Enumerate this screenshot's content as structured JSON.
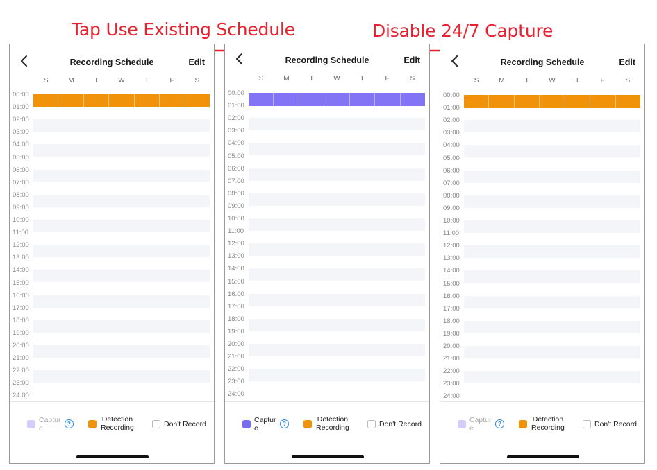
{
  "captions": {
    "step1": "Tap Use Existing Schedule",
    "step2": "Disable 24/7 Capture"
  },
  "panels": [
    {
      "title": "Recording Schedule",
      "edit_label": "Edit",
      "fill_color": "#f0930b",
      "fill_hours": [
        0,
        1
      ],
      "capture_active": false
    },
    {
      "title": "Recording Schedule",
      "edit_label": "Edit",
      "fill_color": "#8274f5",
      "fill_hours": [
        0,
        1
      ],
      "capture_active": true
    },
    {
      "title": "Recording Schedule",
      "edit_label": "Edit",
      "fill_color": "#f0930b",
      "fill_hours": [
        0,
        1
      ],
      "capture_active": false
    }
  ],
  "days": [
    "S",
    "M",
    "T",
    "W",
    "T",
    "F",
    "S"
  ],
  "hours": [
    "00:00",
    "01:00",
    "02:00",
    "03:00",
    "04:00",
    "05:00",
    "06:00",
    "07:00",
    "08:00",
    "09:00",
    "10:00",
    "11:00",
    "12:00",
    "13:00",
    "14:00",
    "15:00",
    "16:00",
    "17:00",
    "18:00",
    "19:00",
    "20:00",
    "21:00",
    "22:00",
    "23:00",
    "24:00"
  ],
  "legend": {
    "capture_label": "Captur e",
    "capture_label_line1": "Captur",
    "capture_label_line2": "e",
    "capture_color_active": "#7a6cf2",
    "capture_color_inactive": "#d4cdfb",
    "detection_label_line1": "Detection",
    "detection_label_line2": "Recording",
    "detection_color": "#f0930b",
    "dont_record_label": "Don't Record",
    "help_glyph": "?"
  },
  "icons": {
    "back": "chevron-left-icon",
    "help": "help-circle-icon",
    "arrow": "arrow-right-icon"
  }
}
